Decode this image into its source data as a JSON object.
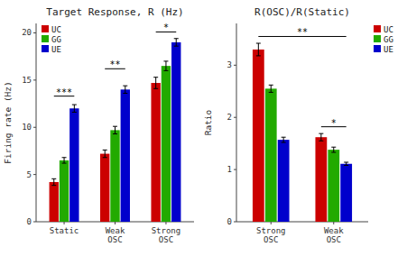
{
  "chart_data": [
    {
      "type": "bar",
      "title": "Target Response, R (Hz)",
      "y_label": "Firing rate (Hz)",
      "categories": [
        "Static",
        "Weak\nOSC",
        "Strong\nOSC"
      ],
      "series": [
        {
          "name": "UC",
          "color": "#cc0000",
          "values": [
            4.2,
            7.2,
            14.7
          ],
          "errors": [
            0.35,
            0.4,
            0.6
          ]
        },
        {
          "name": "GG",
          "color": "#22aa00",
          "values": [
            6.5,
            9.7,
            16.5
          ],
          "errors": [
            0.3,
            0.4,
            0.5
          ]
        },
        {
          "name": "UE",
          "color": "#0000cc",
          "values": [
            12.0,
            14.0,
            19.0
          ],
          "errors": [
            0.4,
            0.4,
            0.4
          ]
        }
      ],
      "ylim": [
        0,
        21
      ],
      "yticks": [
        0,
        5,
        10,
        15,
        20
      ],
      "grid": false,
      "legend": "upper left",
      "annotations": [
        {
          "text": "***",
          "y": 13.3,
          "from": {
            "category": "Static",
            "series": "UC"
          },
          "to": {
            "category": "Static",
            "series": "UE"
          }
        },
        {
          "text": "**",
          "y": 16.2,
          "from": {
            "category": "Weak\nOSC",
            "series": "UC"
          },
          "to": {
            "category": "Weak\nOSC",
            "series": "UE"
          }
        },
        {
          "text": "*",
          "y": 20.1,
          "from": {
            "category": "Strong\nOSC",
            "series": "UC"
          },
          "to": {
            "category": "Strong\nOSC",
            "series": "UE"
          }
        }
      ]
    },
    {
      "type": "bar",
      "title": "R(OSC)/R(Static)",
      "y_label": "Ratio",
      "categories": [
        "Strong\nOSC",
        "Weak\nOSC"
      ],
      "series": [
        {
          "name": "UC",
          "color": "#cc0000",
          "values": [
            3.3,
            1.62
          ],
          "errors": [
            0.12,
            0.07
          ]
        },
        {
          "name": "GG",
          "color": "#22aa00",
          "values": [
            2.55,
            1.38
          ],
          "errors": [
            0.07,
            0.05
          ]
        },
        {
          "name": "UE",
          "color": "#0000cc",
          "values": [
            1.57,
            1.11
          ],
          "errors": [
            0.05,
            0.03
          ]
        }
      ],
      "ylim": [
        0,
        3.8
      ],
      "yticks": [
        0,
        1,
        2,
        3
      ],
      "grid": false,
      "legend": "upper right",
      "annotations": [
        {
          "text": "**",
          "y": 3.55,
          "from": {
            "category": "Strong\nOSC",
            "series": "UC"
          },
          "to": {
            "category": "Weak\nOSC",
            "series": "UE"
          }
        },
        {
          "text": "*",
          "y": 1.82,
          "from": {
            "category": "Weak\nOSC",
            "series": "UC"
          },
          "to": {
            "category": "Weak\nOSC",
            "series": "UE"
          }
        }
      ]
    }
  ]
}
